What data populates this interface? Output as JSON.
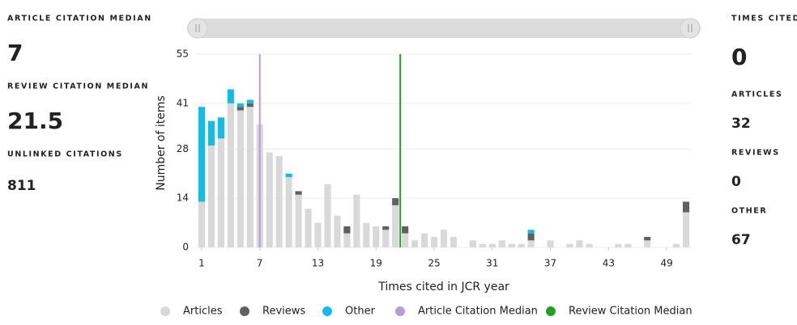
{
  "chart_data": {
    "type": "stacked_bar",
    "x_label": "Times cited in JCR year",
    "y_label": "Number of items",
    "x": [
      1,
      2,
      3,
      4,
      5,
      6,
      7,
      8,
      9,
      10,
      11,
      12,
      13,
      14,
      15,
      16,
      17,
      18,
      19,
      20,
      21,
      22,
      23,
      24,
      25,
      26,
      27,
      28,
      29,
      30,
      31,
      32,
      33,
      34,
      35,
      36,
      37,
      38,
      39,
      40,
      41,
      42,
      43,
      44,
      45,
      46,
      47,
      48,
      49,
      50,
      51
    ],
    "series": [
      {
        "name": "Articles",
        "color": "#d9d9d9",
        "values": [
          13,
          29,
          31,
          41,
          39,
          40,
          35,
          27,
          26,
          20,
          15,
          11,
          7,
          18,
          9,
          4,
          15,
          7,
          6,
          5,
          12,
          4,
          2,
          4,
          3,
          5,
          3,
          0,
          2,
          1,
          1,
          2,
          1,
          1,
          2,
          0,
          2,
          0,
          1,
          2,
          1,
          0,
          0,
          1,
          1,
          0,
          2,
          0,
          0,
          1,
          10
        ]
      },
      {
        "name": "Reviews",
        "color": "#606060",
        "values": [
          0,
          0,
          0,
          0,
          1,
          1,
          0,
          0,
          0,
          0,
          1,
          0,
          0,
          0,
          0,
          2,
          0,
          0,
          0,
          1,
          2,
          2,
          0,
          0,
          0,
          0,
          0,
          0,
          0,
          0,
          0,
          0,
          0,
          0,
          2,
          0,
          0,
          0,
          0,
          0,
          0,
          0,
          0,
          0,
          0,
          0,
          1,
          0,
          0,
          0,
          3
        ]
      },
      {
        "name": "Other",
        "color": "#10bde8",
        "values": [
          27,
          7,
          6,
          4,
          1,
          1,
          0,
          0,
          0,
          1,
          0,
          0,
          0,
          0,
          0,
          0,
          0,
          0,
          0,
          0,
          0,
          0,
          0,
          0,
          0,
          0,
          0,
          0,
          0,
          0,
          0,
          0,
          0,
          0,
          1,
          0,
          0,
          0,
          0,
          0,
          0,
          0,
          0,
          0,
          0,
          0,
          0,
          0,
          0,
          0,
          0
        ]
      }
    ],
    "reference_lines": [
      {
        "name": "Article Citation Median",
        "color": "#b39ddb",
        "x": 7
      },
      {
        "name": "Review Citation Median",
        "color": "#1fa31f",
        "x": 21.5
      }
    ],
    "xlim": [
      0.5,
      51.5
    ],
    "xticks": [
      1,
      7,
      13,
      19,
      25,
      31,
      37,
      43,
      49
    ],
    "ylim": [
      0,
      55
    ],
    "yticks": [
      0,
      14,
      28,
      41,
      55
    ],
    "grid": true
  },
  "left_panel": [
    {
      "label": "ARTICLE CITATION MEDIAN",
      "value": 7,
      "color": "#5e35b1"
    },
    {
      "label": "REVIEW CITATION MEDIAN",
      "value": 21.5,
      "color": "#1fa31f"
    },
    {
      "label": "UNLINKED CITATIONS",
      "value": 811,
      "color": "#222222"
    }
  ],
  "right_panel": [
    {
      "label": "TIMES CITED",
      "value": 0
    },
    {
      "label": "ARTICLES",
      "value": 32
    },
    {
      "label": "REVIEWS",
      "value": 0
    },
    {
      "label": "OTHER",
      "value": 67
    }
  ]
}
